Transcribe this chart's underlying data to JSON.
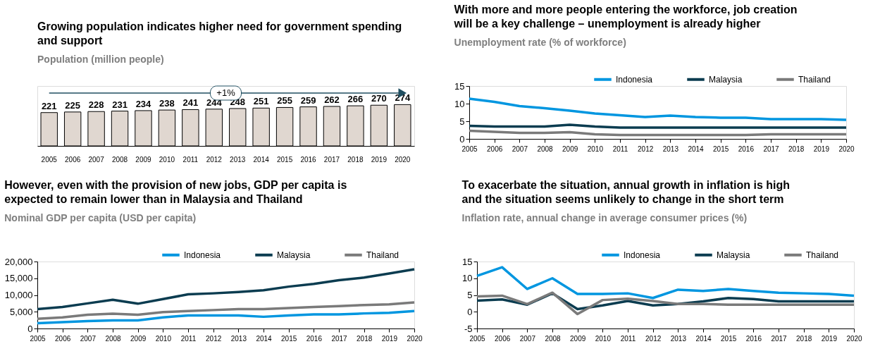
{
  "chart_data": [
    {
      "type": "bar",
      "title": "Growing population indicates higher need for government spending and support",
      "subtitle": "Population (million people)",
      "categories": [
        "2005",
        "2006",
        "2007",
        "2008",
        "2009",
        "2010",
        "2011",
        "2012",
        "2013",
        "2014",
        "2015",
        "2016",
        "2017",
        "2018",
        "2019",
        "2020"
      ],
      "values": [
        221,
        225,
        228,
        231,
        234,
        238,
        241,
        244,
        248,
        251,
        255,
        259,
        262,
        266,
        270,
        274
      ],
      "color": "#e0d7d0",
      "data_labels": true,
      "annotations": [
        "+1%"
      ],
      "grid": false
    },
    {
      "type": "line",
      "title": "With more and more people entering the workforce, job creation will be a key challenge – unemployment is already higher",
      "subtitle": "Unemployment rate (% of workforce)",
      "categories": [
        "2005",
        "2006",
        "2007",
        "2008",
        "2009",
        "2010",
        "2011",
        "2012",
        "2013",
        "2014",
        "2015",
        "2016",
        "2017",
        "2018",
        "2019",
        "2020"
      ],
      "ylim": [
        0,
        15
      ],
      "yticks": [
        0,
        5,
        10,
        15
      ],
      "grid": false,
      "legend": "top right",
      "series": [
        {
          "name": "Indonesia",
          "color": "#0096e0",
          "values": [
            11.4,
            10.5,
            9.3,
            8.7,
            8.0,
            7.2,
            6.7,
            6.2,
            6.6,
            6.2,
            6.0,
            6.0,
            5.6,
            5.6,
            5.6,
            5.4
          ]
        },
        {
          "name": "Malaysia",
          "color": "#0b3c50",
          "values": [
            3.7,
            3.5,
            3.5,
            3.5,
            4.0,
            3.5,
            3.2,
            3.2,
            3.2,
            3.2,
            3.2,
            3.2,
            3.2,
            3.2,
            3.2,
            3.2
          ]
        },
        {
          "name": "Thailand",
          "color": "#7a7a7a",
          "values": [
            2.3,
            2.0,
            1.7,
            1.7,
            1.9,
            1.3,
            1.1,
            1.1,
            1.1,
            1.1,
            1.1,
            1.1,
            1.3,
            1.3,
            1.3,
            1.3
          ]
        }
      ]
    },
    {
      "type": "line",
      "title": "However, even with the provision of new jobs, GDP per capita is expected to remain lower than in Malaysia and Thailand",
      "subtitle": "Nominal GDP per capita (USD per capita)",
      "categories": [
        "2005",
        "2006",
        "2007",
        "2008",
        "2009",
        "2010",
        "2011",
        "2012",
        "2013",
        "2014",
        "2015",
        "2016",
        "2017",
        "2018",
        "2019",
        "2020"
      ],
      "ylim": [
        0,
        20000
      ],
      "yticks": [
        0,
        {
          "value": 5000,
          "label": "5,000"
        },
        {
          "value": 10000,
          "label": "10,000"
        },
        {
          "value": 15000,
          "label": "15,000"
        },
        {
          "value": 20000,
          "label": "20,000"
        }
      ],
      "grid": false,
      "legend": "top right",
      "series": [
        {
          "name": "Indonesia",
          "color": "#0096e0",
          "values": [
            1600,
            1900,
            2200,
            2400,
            2400,
            3300,
            3900,
            3900,
            3900,
            3500,
            3900,
            4200,
            4200,
            4500,
            4700,
            5200
          ]
        },
        {
          "name": "Malaysia",
          "color": "#0b3c50",
          "values": [
            5800,
            6400,
            7500,
            8600,
            7400,
            8800,
            10200,
            10500,
            10900,
            11400,
            12500,
            13300,
            14400,
            15200,
            16400,
            17700
          ]
        },
        {
          "name": "Thailand",
          "color": "#7a7a7a",
          "values": [
            2900,
            3300,
            4100,
            4400,
            4100,
            4900,
            5200,
            5500,
            5800,
            5800,
            6100,
            6400,
            6700,
            7000,
            7200,
            7800
          ]
        }
      ]
    },
    {
      "type": "line",
      "title": "To exacerbate the situation, annual growth in inflation is high and the situation seems unlikely to change in the short term",
      "subtitle": "Inflation rate, annual change in average consumer prices (%)",
      "categories": [
        "2005",
        "2006",
        "2007",
        "2008",
        "2009",
        "2010",
        "2011",
        "2012",
        "2013",
        "2014",
        "2015",
        "2016",
        "2017",
        "2018",
        "2019",
        "2020"
      ],
      "ylim": [
        -5,
        15
      ],
      "yticks": [
        -5,
        0,
        5,
        10,
        15
      ],
      "grid": false,
      "legend": "top right",
      "series": [
        {
          "name": "Indonesia",
          "color": "#0096e0",
          "values": [
            10.7,
            13.3,
            6.8,
            10.0,
            5.3,
            5.3,
            5.5,
            4.1,
            6.6,
            6.2,
            6.8,
            6.2,
            5.7,
            5.5,
            5.3,
            4.8
          ]
        },
        {
          "name": "Malaysia",
          "color": "#0b3c50",
          "values": [
            3.3,
            3.7,
            2.1,
            5.5,
            0.8,
            1.9,
            3.2,
            1.9,
            2.3,
            3.1,
            4.1,
            3.8,
            3.1,
            3.1,
            3.1,
            3.1
          ]
        },
        {
          "name": "Thailand",
          "color": "#7a7a7a",
          "values": [
            4.6,
            4.8,
            2.3,
            5.7,
            -0.7,
            3.5,
            3.9,
            3.2,
            2.3,
            2.3,
            2.1,
            2.1,
            2.1,
            2.1,
            2.1,
            2.1
          ]
        }
      ]
    }
  ]
}
